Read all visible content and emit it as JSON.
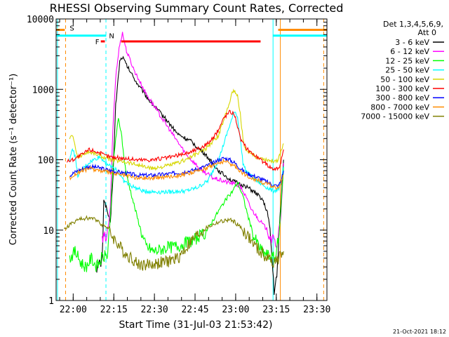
{
  "chart_data": {
    "type": "line",
    "title": "RHESSI Observing Summary Count Rates, Corrected",
    "xlabel": "Start Time (31-Jul-03 21:53:42)",
    "ylabel": "Corrected Count Rate (s⁻¹ detector⁻¹)",
    "yscale": "log",
    "ylim": [
      1,
      10000
    ],
    "xlim_minutes_after_start": [
      0,
      100
    ],
    "x_ticks": [
      {
        "label": "22:00",
        "t": 6.3
      },
      {
        "label": "22:15",
        "t": 21.3
      },
      {
        "label": "22:30",
        "t": 36.3
      },
      {
        "label": "22:45",
        "t": 51.3
      },
      {
        "label": "23:00",
        "t": 66.3
      },
      {
        "label": "23:15",
        "t": 81.3
      },
      {
        "label": "23:30",
        "t": 96.3
      }
    ],
    "y_ticks": [
      {
        "label": "1",
        "v": 1
      },
      {
        "label": "10",
        "v": 10
      },
      {
        "label": "100",
        "v": 100
      },
      {
        "label": "1000",
        "v": 1000
      },
      {
        "label": "10000",
        "v": 10000
      }
    ],
    "legend_header": [
      "Det 1,3,4,5,6,9,",
      "Att 0"
    ],
    "series": [
      {
        "name": "3 - 6 keV",
        "color": "#000000",
        "points": [
          [
            15,
            3
          ],
          [
            17,
            3.5
          ],
          [
            17.6,
            28
          ],
          [
            19,
            18
          ],
          [
            20,
            12
          ],
          [
            21,
            60
          ],
          [
            22,
            600
          ],
          [
            23.5,
            2500
          ],
          [
            24.5,
            2900
          ],
          [
            26,
            2200
          ],
          [
            30,
            1200
          ],
          [
            35,
            650
          ],
          [
            40,
            400
          ],
          [
            45,
            230
          ],
          [
            50,
            180
          ],
          [
            55,
            120
          ],
          [
            60,
            70
          ],
          [
            65,
            50
          ],
          [
            70,
            42
          ],
          [
            73,
            35
          ],
          [
            76,
            28
          ],
          [
            78,
            18
          ],
          [
            79,
            10
          ],
          [
            80.5,
            1.4
          ],
          [
            81.5,
            2
          ],
          [
            82.5,
            12
          ],
          [
            84,
            100
          ]
        ]
      },
      {
        "name": "6 - 12 keV",
        "color": "#ff00ff",
        "points": [
          [
            17,
            7
          ],
          [
            19,
            9
          ],
          [
            20,
            20
          ],
          [
            21,
            300
          ],
          [
            22,
            1500
          ],
          [
            23.5,
            4500
          ],
          [
            24.5,
            6300
          ],
          [
            26,
            3500
          ],
          [
            29,
            1800
          ],
          [
            33,
            900
          ],
          [
            38,
            450
          ],
          [
            43,
            230
          ],
          [
            48,
            120
          ],
          [
            53,
            75
          ],
          [
            58,
            55
          ],
          [
            63,
            48
          ],
          [
            66,
            45
          ],
          [
            68,
            42
          ],
          [
            70,
            30
          ],
          [
            72,
            20
          ],
          [
            75,
            14
          ],
          [
            78,
            10
          ],
          [
            80,
            7
          ],
          [
            81.5,
            6.5
          ],
          [
            83,
            15
          ],
          [
            84,
            90
          ]
        ]
      },
      {
        "name": "12 - 25 keV",
        "color": "#00ff00",
        "points": [
          [
            5,
            4
          ],
          [
            7,
            5
          ],
          [
            9,
            3.5
          ],
          [
            11,
            3
          ],
          [
            13,
            4
          ],
          [
            15,
            3
          ],
          [
            17,
            4
          ],
          [
            19,
            4.5
          ],
          [
            20,
            15
          ],
          [
            21,
            80
          ],
          [
            22,
            200
          ],
          [
            23,
            380
          ],
          [
            24,
            250
          ],
          [
            25,
            110
          ],
          [
            26,
            60
          ],
          [
            28,
            30
          ],
          [
            30,
            15
          ],
          [
            32,
            8
          ],
          [
            33,
            6
          ],
          [
            36,
            5
          ],
          [
            40,
            5.5
          ],
          [
            45,
            6
          ],
          [
            50,
            7
          ],
          [
            55,
            9
          ],
          [
            58,
            14
          ],
          [
            62,
            25
          ],
          [
            65,
            35
          ],
          [
            67,
            48
          ],
          [
            69,
            30
          ],
          [
            71,
            15
          ],
          [
            73,
            8
          ],
          [
            76,
            5
          ],
          [
            79,
            4.2
          ],
          [
            81,
            4
          ],
          [
            82.5,
            10
          ],
          [
            84,
            80
          ]
        ]
      },
      {
        "name": "25 - 50 keV",
        "color": "#00ffff",
        "points": [
          [
            5,
            95
          ],
          [
            6,
            150
          ],
          [
            7,
            110
          ],
          [
            8,
            60
          ],
          [
            10,
            75
          ],
          [
            12,
            90
          ],
          [
            14,
            100
          ],
          [
            16,
            110
          ],
          [
            18,
            95
          ],
          [
            20,
            80
          ],
          [
            22,
            75
          ],
          [
            25,
            50
          ],
          [
            28,
            42
          ],
          [
            32,
            36
          ],
          [
            36,
            35
          ],
          [
            42,
            35
          ],
          [
            48,
            36
          ],
          [
            52,
            40
          ],
          [
            56,
            50
          ],
          [
            60,
            100
          ],
          [
            64,
            300
          ],
          [
            66,
            500
          ],
          [
            67,
            400
          ],
          [
            68,
            200
          ],
          [
            69,
            90
          ],
          [
            70,
            70
          ],
          [
            74,
            50
          ],
          [
            78,
            40
          ],
          [
            80,
            36
          ],
          [
            82,
            38
          ],
          [
            83,
            45
          ],
          [
            84,
            80
          ]
        ]
      },
      {
        "name": "50 - 100 keV",
        "color": "#d7d700",
        "points": [
          [
            5,
            200
          ],
          [
            6,
            230
          ],
          [
            7,
            150
          ],
          [
            8,
            110
          ],
          [
            10,
            120
          ],
          [
            12,
            130
          ],
          [
            15,
            120
          ],
          [
            20,
            100
          ],
          [
            25,
            95
          ],
          [
            30,
            85
          ],
          [
            35,
            75
          ],
          [
            40,
            80
          ],
          [
            45,
            90
          ],
          [
            50,
            110
          ],
          [
            55,
            140
          ],
          [
            60,
            220
          ],
          [
            63,
            500
          ],
          [
            65,
            900
          ],
          [
            66,
            950
          ],
          [
            67,
            800
          ],
          [
            68,
            450
          ],
          [
            69,
            200
          ],
          [
            70,
            130
          ],
          [
            74,
            110
          ],
          [
            78,
            100
          ],
          [
            80,
            95
          ],
          [
            82,
            100
          ],
          [
            84,
            170
          ]
        ]
      },
      {
        "name": "100 - 300 keV",
        "color": "#ff0000",
        "points": [
          [
            4,
            95
          ],
          [
            6,
            100
          ],
          [
            8,
            110
          ],
          [
            10,
            120
          ],
          [
            12,
            140
          ],
          [
            14,
            135
          ],
          [
            16,
            125
          ],
          [
            18,
            115
          ],
          [
            20,
            110
          ],
          [
            25,
            105
          ],
          [
            30,
            100
          ],
          [
            35,
            100
          ],
          [
            40,
            105
          ],
          [
            45,
            115
          ],
          [
            50,
            130
          ],
          [
            55,
            160
          ],
          [
            58,
            200
          ],
          [
            60,
            270
          ],
          [
            62,
            400
          ],
          [
            64,
            480
          ],
          [
            65,
            470
          ],
          [
            66,
            430
          ],
          [
            67,
            300
          ],
          [
            68,
            200
          ],
          [
            70,
            150
          ],
          [
            74,
            110
          ],
          [
            78,
            85
          ],
          [
            80,
            75
          ],
          [
            82,
            75
          ],
          [
            83,
            90
          ],
          [
            84,
            140
          ]
        ]
      },
      {
        "name": "300 - 800 keV",
        "color": "#0000ff",
        "points": [
          [
            5,
            60
          ],
          [
            8,
            70
          ],
          [
            12,
            80
          ],
          [
            15,
            78
          ],
          [
            20,
            70
          ],
          [
            25,
            65
          ],
          [
            30,
            60
          ],
          [
            35,
            60
          ],
          [
            40,
            62
          ],
          [
            45,
            65
          ],
          [
            50,
            70
          ],
          [
            55,
            80
          ],
          [
            58,
            90
          ],
          [
            60,
            100
          ],
          [
            62,
            105
          ],
          [
            64,
            100
          ],
          [
            66,
            90
          ],
          [
            68,
            75
          ],
          [
            70,
            65
          ],
          [
            75,
            55
          ],
          [
            78,
            48
          ],
          [
            80,
            44
          ],
          [
            82,
            42
          ],
          [
            83,
            50
          ],
          [
            84,
            70
          ]
        ]
      },
      {
        "name": "800 - 7000 keV",
        "color": "#ff8c00",
        "points": [
          [
            5,
            55
          ],
          [
            8,
            65
          ],
          [
            12,
            75
          ],
          [
            15,
            72
          ],
          [
            20,
            65
          ],
          [
            25,
            60
          ],
          [
            30,
            55
          ],
          [
            35,
            55
          ],
          [
            40,
            57
          ],
          [
            45,
            60
          ],
          [
            50,
            65
          ],
          [
            55,
            75
          ],
          [
            58,
            85
          ],
          [
            60,
            90
          ],
          [
            62,
            95
          ],
          [
            64,
            90
          ],
          [
            66,
            80
          ],
          [
            68,
            70
          ],
          [
            70,
            60
          ],
          [
            75,
            50
          ],
          [
            78,
            45
          ],
          [
            80,
            42
          ],
          [
            82,
            40
          ],
          [
            83,
            45
          ],
          [
            84,
            60
          ]
        ]
      },
      {
        "name": "7000 - 15000 keV",
        "color": "#808000",
        "points": [
          [
            3,
            10
          ],
          [
            5,
            12
          ],
          [
            8,
            14
          ],
          [
            12,
            15
          ],
          [
            15,
            14
          ],
          [
            17,
            12
          ],
          [
            19,
            11
          ],
          [
            20,
            9
          ],
          [
            22,
            7
          ],
          [
            24,
            5.5
          ],
          [
            26,
            4.5
          ],
          [
            28,
            4
          ],
          [
            30,
            3.3
          ],
          [
            33,
            3.2
          ],
          [
            36,
            3.3
          ],
          [
            40,
            3.5
          ],
          [
            45,
            4
          ],
          [
            50,
            7
          ],
          [
            53,
            9
          ],
          [
            56,
            11
          ],
          [
            60,
            13
          ],
          [
            64,
            14
          ],
          [
            66,
            13
          ],
          [
            68,
            11
          ],
          [
            70,
            9
          ],
          [
            72,
            7
          ],
          [
            75,
            5
          ],
          [
            78,
            4
          ],
          [
            80,
            3.6
          ],
          [
            82,
            3.8
          ],
          [
            84,
            5
          ]
        ]
      }
    ],
    "flag_bars": [
      {
        "flag": "S",
        "color": "#ff8c00",
        "level": 7000,
        "segments": [
          [
            0,
            3.2
          ],
          [
            82,
            100
          ]
        ]
      },
      {
        "flag": "N",
        "color": "#00ffff",
        "level": 5800,
        "segments": [
          [
            0,
            18.5
          ],
          [
            80,
            100
          ]
        ]
      },
      {
        "flag": "F",
        "color": "#ff0000",
        "level": 4800,
        "segments": [
          [
            16.5,
            18
          ],
          [
            24,
            75.5
          ]
        ]
      }
    ],
    "vertical_lines": [
      {
        "color": "#00ffff",
        "style": "solid",
        "t": 0.5
      },
      {
        "color": "#ff8c00",
        "style": "dashed",
        "t": 3.5
      },
      {
        "color": "#00ffff",
        "style": "dashed",
        "t": 18.4
      },
      {
        "color": "#00ffff",
        "style": "solid",
        "t": 80.1
      },
      {
        "color": "#ff8c00",
        "style": "solid",
        "t": 82.8
      },
      {
        "color": "#ff8c00",
        "style": "dashed",
        "t": 98.8
      }
    ],
    "timestamp": "21-Oct-2021 18:12"
  }
}
